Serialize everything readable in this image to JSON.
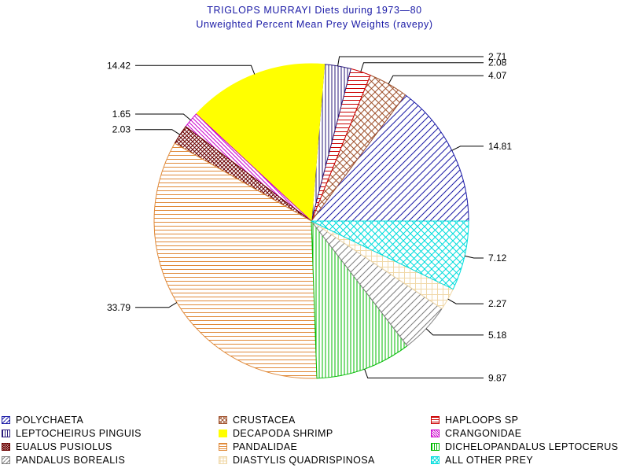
{
  "chart_data": {
    "type": "pie",
    "title": "TRIGLOPS  MURRAYI Diets  during  1973—80",
    "subtitle": "Unweighted  Percent  Mean  Prey  Weights  (ravepy)",
    "slices": [
      {
        "name": "POLYCHAETA",
        "value": 14.81,
        "color": "#1a1aa6",
        "pattern": "diag-up"
      },
      {
        "name": "CRUSTACEA",
        "value": 4.07,
        "color": "#a0522d",
        "pattern": "crosshatch"
      },
      {
        "name": "HAPLOOPS SP",
        "value": 2.08,
        "color": "#cc0000",
        "pattern": "horizontal"
      },
      {
        "name": "LEPTOCHEIRUS PINGUIS",
        "value": 2.71,
        "color": "#2a1a7a",
        "pattern": "vertical"
      },
      {
        "name": "DECAPODA SHRIMP",
        "value": 14.42,
        "color": "#ffff00",
        "pattern": "solid"
      },
      {
        "name": "CRANGONIDAE",
        "value": 1.65,
        "color": "#cc00cc",
        "pattern": "diag-down"
      },
      {
        "name": "EUALUS PUSIOLUS",
        "value": 2.03,
        "color": "#6b0000",
        "pattern": "crosshatch-dense"
      },
      {
        "name": "PANDALIDAE",
        "value": 33.79,
        "color": "#e08a3a",
        "pattern": "horizontal"
      },
      {
        "name": "DICHELOPANDALUS LEPTOCERUS",
        "value": 9.87,
        "color": "#00bb00",
        "pattern": "vertical"
      },
      {
        "name": "PANDALUS BOREALIS",
        "value": 5.18,
        "color": "#808080",
        "pattern": "diag-up"
      },
      {
        "name": "DIASTYLIS QUADRISPINOSA",
        "value": 2.27,
        "color": "#f0d8a8",
        "pattern": "grid"
      },
      {
        "name": "ALL OTHER PREY",
        "value": 7.12,
        "color": "#00dddd",
        "pattern": "crosshatch"
      }
    ],
    "data_labels": [
      "14.81",
      "4.07",
      "2.08",
      "2.71",
      "14.42",
      "1.65",
      "2.03",
      "33.79",
      "9.87",
      "5.18",
      "2.27",
      "7.12"
    ],
    "start_angle_deg": 0,
    "direction": "counterclockwise",
    "legend_position": "bottom"
  }
}
